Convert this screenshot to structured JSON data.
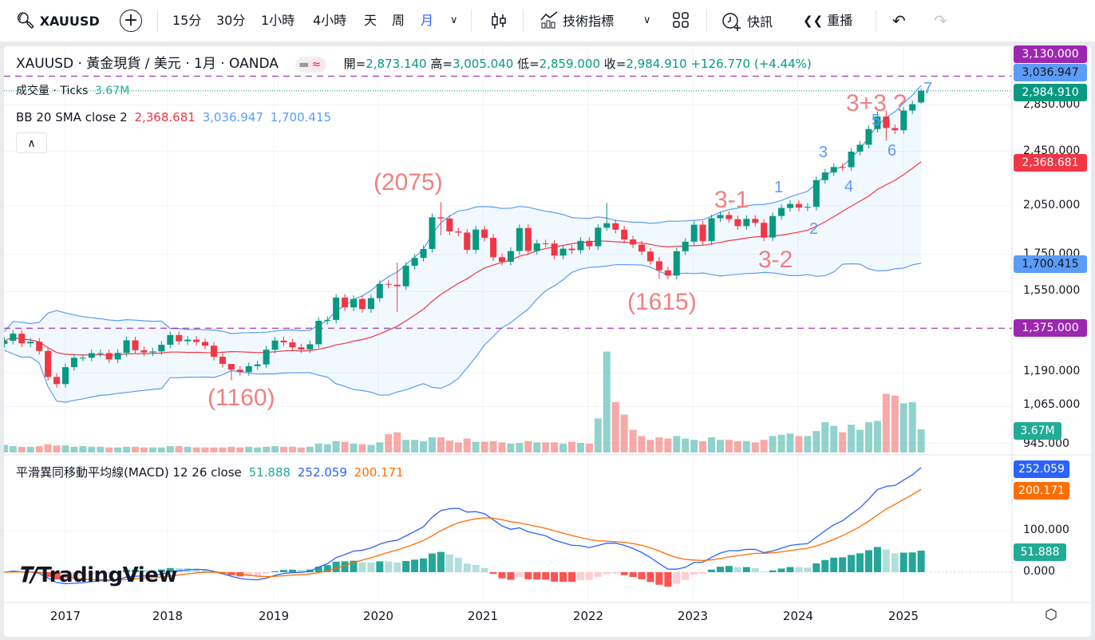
{
  "toolbar": {
    "symbol": "XAUUSD",
    "intervals": [
      "15分",
      "30分",
      "1小時",
      "4小時",
      "天",
      "周",
      "月"
    ],
    "active_interval": "月",
    "indicators_label": "技術指標",
    "alerts_label": "快訊",
    "replay_label": "重播",
    "icons": [
      "search-icon",
      "plus-circle-icon",
      "chevron-down-icon",
      "candles-icon",
      "indicators-icon",
      "layout-grid-icon",
      "alarm-icon",
      "replay-icon",
      "undo-icon",
      "redo-icon"
    ]
  },
  "legend": {
    "title": "XAUUSD · 黃金現貨 / 美元 · 1月 · OANDA",
    "open_label": "開=",
    "open": "2,873.140",
    "high_label": "高=",
    "high": "3,005.040",
    "low_label": "低=",
    "low": "2,859.000",
    "close_label": "收=",
    "close": "2,984.910",
    "change": "+126.770 (+4.44%)",
    "volume_label": "成交量 · Ticks",
    "volume_value": "3.67M",
    "bb_label": "BB 20 SMA close 2",
    "bb_basis": "2,368.681",
    "bb_upper": "3,036.947",
    "bb_lower": "1,700.415",
    "macd_label": "平滑異同移動平均線(MACD) 12 26 close",
    "macd_hist": "51.888",
    "macd_line": "252.059",
    "macd_signal": "200.171"
  },
  "price_axis": [
    "2,850.000",
    "2,450.000",
    "2,050.000",
    "1,750.000",
    "1,550.000",
    "1,190.000",
    "1,065.000",
    "945.000"
  ],
  "macd_axis": [
    "100.000",
    "0.000"
  ],
  "badges": {
    "hline_top": "3,130.000",
    "bb_upper": "3,036.947",
    "last_price": "2,984.910",
    "bb_basis": "2,368.681",
    "bb_lower": "1,700.415",
    "hline_bottom": "1,375.000",
    "volume": "3.67M",
    "macd_line": "252.059",
    "macd_signal": "200.171",
    "macd_hist": "51.888"
  },
  "time_axis": [
    "2017",
    "2018",
    "2019",
    "2020",
    "2021",
    "2022",
    "2023",
    "2024",
    "2025"
  ],
  "annotations": {
    "peak_2020": "(2075)",
    "low_2018": "(1160)",
    "low_2022": "(1615)",
    "wave_3_1": "3-1",
    "wave_3_2": "3-2",
    "wave_3_3": "3+3 ?",
    "w1": "1",
    "w2": "2",
    "w3": "3",
    "w4": "4",
    "w5": "5",
    "w6": "6",
    "w7": "7"
  },
  "logo": "TradingView",
  "colors": {
    "up": "#089981",
    "down": "#f23645",
    "bb_basis": "#f23645",
    "bb_band": "#5b9cf6",
    "hline": "#9c27b0",
    "macd": "#2962ff",
    "signal": "#ff6d00"
  },
  "chart_data": {
    "type": "candlestick",
    "symbol": "XAUUSD",
    "interval": "1M",
    "scale": "log",
    "start_month": "2016-06",
    "close": [
      1320,
      1351,
      1309,
      1316,
      1277,
      1173,
      1146,
      1211,
      1249,
      1249,
      1268,
      1268,
      1242,
      1269,
      1322,
      1280,
      1271,
      1275,
      1303,
      1345,
      1318,
      1325,
      1315,
      1299,
      1253,
      1224,
      1201,
      1192,
      1215,
      1222,
      1282,
      1321,
      1313,
      1292,
      1283,
      1305,
      1409,
      1413,
      1520,
      1472,
      1513,
      1464,
      1517,
      1589,
      1585,
      1577,
      1686,
      1730,
      1781,
      1975,
      1967,
      1886,
      1879,
      1776,
      1898,
      1847,
      1734,
      1708,
      1769,
      1907,
      1770,
      1814,
      1813,
      1743,
      1783,
      1774,
      1829,
      1797,
      1909,
      1937,
      1897,
      1837,
      1807,
      1766,
      1711,
      1661,
      1633,
      1768,
      1824,
      1928,
      1827,
      1969,
      1990,
      1963,
      1919,
      1965,
      1940,
      1849,
      1983,
      2036,
      2063,
      2039,
      2044,
      2230,
      2286,
      2327,
      2326,
      2447,
      2503,
      2634,
      2744,
      2643,
      2624,
      2798,
      2857,
      2984.91
    ],
    "high_low_overrides": {
      "2018-08": [
        1214,
        1160
      ],
      "2020-03": [
        1704,
        1451
      ],
      "2020-08": [
        2075,
        1863
      ],
      "2022-03": [
        2070,
        1890
      ],
      "2022-09": [
        1735,
        1615
      ],
      "2024-10": [
        2790,
        2604
      ],
      "2024-11": [
        2801,
        2536
      ]
    },
    "last_bar": {
      "open": 2873.14,
      "high": 3005.04,
      "low": 2859.0,
      "close": 2984.91
    },
    "volume_m": [
      1.2,
      1.0,
      0.9,
      0.9,
      1.0,
      1.3,
      1.1,
      1.1,
      0.9,
      1.0,
      0.9,
      0.9,
      0.8,
      0.8,
      0.9,
      0.9,
      0.8,
      0.8,
      0.8,
      1.0,
      1.0,
      0.9,
      0.8,
      0.8,
      0.8,
      0.8,
      0.9,
      0.8,
      0.9,
      0.8,
      0.9,
      1.0,
      0.9,
      0.9,
      0.8,
      0.9,
      1.4,
      1.3,
      1.8,
      1.7,
      1.4,
      1.3,
      1.2,
      1.6,
      2.9,
      3.2,
      2.0,
      2.0,
      1.8,
      2.4,
      2.4,
      1.9,
      1.6,
      2.2,
      1.7,
      1.7,
      1.8,
      1.6,
      1.4,
      1.5,
      1.8,
      1.6,
      1.6,
      1.6,
      1.4,
      1.7,
      1.5,
      1.4,
      5.4,
      16.0,
      8.0,
      6.0,
      3.6,
      2.6,
      2.0,
      2.4,
      2.2,
      2.6,
      2.2,
      2.0,
      1.8,
      2.4,
      2.0,
      2.0,
      1.8,
      1.8,
      1.6,
      2.0,
      2.6,
      2.8,
      3.0,
      2.6,
      2.6,
      3.4,
      4.8,
      4.2,
      3.2,
      4.4,
      3.6,
      4.8,
      5.0,
      9.3,
      9.0,
      7.8,
      8.0,
      3.67
    ],
    "horizontal_lines": [
      3130,
      1375
    ],
    "indicators": {
      "bollinger": {
        "length": 20,
        "mult": 2
      },
      "macd": {
        "fast": 12,
        "slow": 26,
        "signal": 9
      }
    },
    "price_ticks": [
      2850,
      2450,
      2050,
      1750,
      1550,
      1190,
      1065,
      945
    ],
    "macd_ticks": [
      100,
      0
    ],
    "x_ticks": [
      "2017",
      "2018",
      "2019",
      "2020",
      "2021",
      "2022",
      "2023",
      "2024",
      "2025"
    ]
  }
}
